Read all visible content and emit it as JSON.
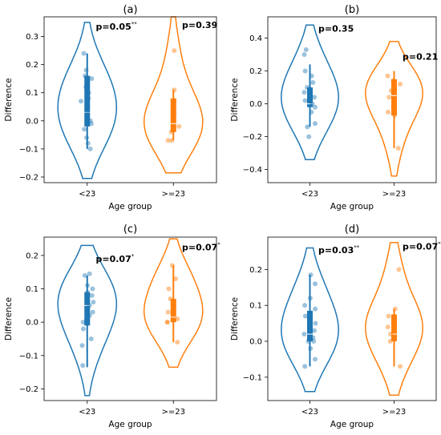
{
  "chart_data": [
    {
      "panel_label": "(a)",
      "type": "violin",
      "ylabel": "Difference",
      "xlabel": "Age group",
      "categories": [
        "<23",
        ">=23"
      ],
      "ylim": [
        -0.22,
        0.37
      ],
      "yticks": [
        -0.2,
        -0.1,
        0.0,
        0.1,
        0.2,
        0.3
      ],
      "ytick_labels": [
        "−0.2",
        "−0.1",
        "0.0",
        "0.1",
        "0.2",
        "0.3"
      ],
      "colors": [
        "#1f77b4",
        "#ff7f0e"
      ],
      "groups": [
        {
          "label": "<23",
          "violin_range": [
            -0.205,
            0.35
          ],
          "box": {
            "q1": -0.02,
            "median": 0.03,
            "q3": 0.16,
            "whisker_low": -0.1,
            "whisker_high": 0.24
          },
          "points": [
            -0.1,
            -0.08,
            -0.06,
            -0.03,
            -0.01,
            0.0,
            0.02,
            0.03,
            0.05,
            0.07,
            0.08,
            0.1,
            0.12,
            0.15,
            0.16,
            0.18,
            0.24
          ]
        },
        {
          "label": ">=23",
          "violin_range": [
            -0.185,
            0.37
          ],
          "box": {
            "q1": -0.04,
            "median": -0.01,
            "q3": 0.08,
            "whisker_low": -0.07,
            "whisker_high": 0.11
          },
          "points": [
            -0.07,
            -0.07,
            -0.04,
            -0.02,
            0.0,
            0.03,
            0.07,
            0.11,
            0.25
          ]
        }
      ],
      "annotations": [
        {
          "text": "p=0.05",
          "sup": "**",
          "x": "<23",
          "y": 0.325
        },
        {
          "text": "p=0.39",
          "sup": "",
          "x": ">=23",
          "y": 0.33
        }
      ]
    },
    {
      "panel_label": "(b)",
      "type": "violin",
      "ylabel": "Difference",
      "xlabel": "Age group",
      "categories": [
        "<23",
        ">=23"
      ],
      "ylim": [
        -0.48,
        0.53
      ],
      "yticks": [
        -0.4,
        -0.2,
        0.0,
        0.2,
        0.4
      ],
      "ytick_labels": [
        "−0.4",
        "−0.2",
        "0.0",
        "0.2",
        "0.4"
      ],
      "colors": [
        "#1f77b4",
        "#ff7f0e"
      ],
      "groups": [
        {
          "label": "<23",
          "violin_range": [
            -0.34,
            0.48
          ],
          "box": {
            "q1": -0.02,
            "median": 0.0,
            "q3": 0.1,
            "whisker_low": -0.14,
            "whisker_high": 0.24
          },
          "points": [
            -0.2,
            -0.14,
            -0.12,
            -0.05,
            -0.02,
            0.0,
            0.02,
            0.04,
            0.07,
            0.1,
            0.13,
            0.17,
            0.2,
            0.3,
            0.33
          ]
        },
        {
          "label": ">=23",
          "violin_range": [
            -0.44,
            0.38
          ],
          "box": {
            "q1": -0.07,
            "median": 0.05,
            "q3": 0.15,
            "whisker_low": -0.27,
            "whisker_high": 0.2
          },
          "points": [
            -0.27,
            -0.07,
            -0.05,
            0.04,
            0.08,
            0.12,
            0.14,
            0.17
          ]
        }
      ],
      "annotations": [
        {
          "text": "p=0.35",
          "sup": "",
          "x": "<23",
          "y": 0.44
        },
        {
          "text": "p=0.21",
          "sup": "",
          "x": ">=23",
          "y": 0.27
        }
      ]
    },
    {
      "panel_label": "(c)",
      "type": "violin",
      "ylabel": "Difference",
      "xlabel": "Age group",
      "categories": [
        "<23",
        ">=23"
      ],
      "ylim": [
        -0.235,
        0.255
      ],
      "yticks": [
        -0.2,
        -0.1,
        0.0,
        0.1,
        0.2
      ],
      "ytick_labels": [
        "−0.2",
        "−0.1",
        "0.0",
        "0.1",
        "0.2"
      ],
      "colors": [
        "#1f77b4",
        "#ff7f0e"
      ],
      "groups": [
        {
          "label": "<23",
          "violin_range": [
            -0.22,
            0.23
          ],
          "box": {
            "q1": -0.01,
            "median": 0.05,
            "q3": 0.09,
            "whisker_low": -0.135,
            "whisker_high": 0.14
          },
          "points": [
            -0.13,
            -0.07,
            -0.05,
            -0.02,
            0.0,
            0.02,
            0.03,
            0.05,
            0.06,
            0.08,
            0.09,
            0.1,
            0.11,
            0.14,
            0.145
          ]
        },
        {
          "label": ">=23",
          "violin_range": [
            -0.135,
            0.25
          ],
          "box": {
            "q1": 0.0,
            "median": 0.015,
            "q3": 0.07,
            "whisker_low": -0.06,
            "whisker_high": 0.17
          },
          "points": [
            -0.06,
            0.0,
            0.0,
            0.01,
            0.03,
            0.07,
            0.1,
            0.13,
            0.17
          ]
        }
      ],
      "annotations": [
        {
          "text": "p=0.07",
          "sup": "*",
          "x": "<23",
          "y": 0.18
        },
        {
          "text": "p=0.07",
          "sup": "*",
          "x": ">=23",
          "y": 0.215
        }
      ]
    },
    {
      "panel_label": "(d)",
      "type": "violin",
      "ylabel": "Difference",
      "xlabel": "Age group",
      "categories": [
        "<23",
        ">=23"
      ],
      "ylim": [
        -0.165,
        0.29
      ],
      "yticks": [
        -0.1,
        0.0,
        0.1,
        0.2
      ],
      "ytick_labels": [
        "−0.1",
        "0.0",
        "0.1",
        "0.2"
      ],
      "colors": [
        "#1f77b4",
        "#ff7f0e"
      ],
      "groups": [
        {
          "label": "<23",
          "violin_range": [
            -0.14,
            0.26
          ],
          "box": {
            "q1": 0.0,
            "median": 0.02,
            "q3": 0.085,
            "whisker_low": -0.07,
            "whisker_high": 0.185
          },
          "points": [
            -0.07,
            -0.05,
            -0.02,
            0.0,
            0.0,
            0.01,
            0.02,
            0.03,
            0.05,
            0.07,
            0.09,
            0.1,
            0.12,
            0.16,
            0.185
          ]
        },
        {
          "label": ">=23",
          "violin_range": [
            -0.15,
            0.275
          ],
          "box": {
            "q1": 0.0,
            "median": 0.02,
            "q3": 0.075,
            "whisker_low": -0.07,
            "whisker_high": 0.09
          },
          "points": [
            -0.07,
            0.0,
            0.02,
            0.04,
            0.07,
            0.09,
            0.2
          ]
        }
      ],
      "annotations": [
        {
          "text": "p=0.03",
          "sup": "**",
          "x": "<23",
          "y": 0.245
        },
        {
          "text": "p=0.07",
          "sup": "*",
          "x": ">=23",
          "y": 0.255
        }
      ]
    }
  ]
}
